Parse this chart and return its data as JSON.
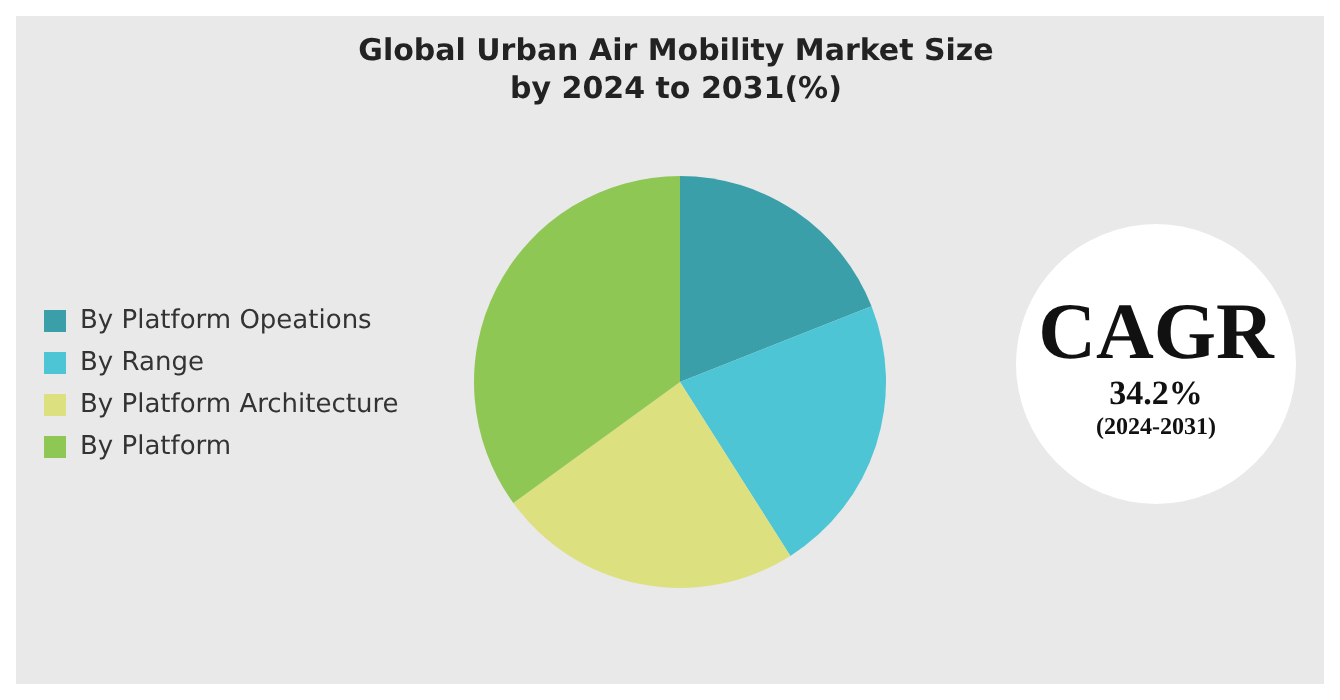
{
  "chart_data": {
    "type": "pie",
    "title": "Global Urban Air Mobility Market Size by 2024 to 2031(%)",
    "categories": [
      "By Platform Opeations",
      "By Range",
      "By Platform Architecture",
      "By Platform"
    ],
    "values": [
      19,
      22,
      24,
      35
    ],
    "colors": [
      "#3a9fa8",
      "#4ec5d4",
      "#dde07e",
      "#8fc755"
    ],
    "legend": "left",
    "annotations": [
      "CAGR",
      "34.2%",
      "(2024-2031)"
    ]
  }
}
